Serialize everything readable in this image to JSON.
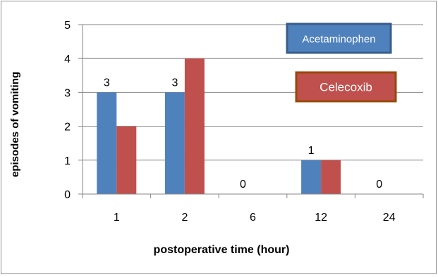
{
  "chart_data": {
    "type": "bar",
    "title": "",
    "xlabel": "postoperative time (hour)",
    "ylabel": "episodes of vomiting",
    "categories": [
      "1",
      "2",
      "6",
      "12",
      "24"
    ],
    "ylim": [
      0,
      5
    ],
    "yticks": [
      "0",
      "1",
      "2",
      "3",
      "4",
      "5"
    ],
    "grid": true,
    "legend_position": "top-right",
    "data_labels": [
      "3",
      "3",
      "0",
      "1",
      "0"
    ],
    "series": [
      {
        "name": "Acetaminophen",
        "values": [
          3,
          3,
          0,
          1,
          0
        ],
        "color": "#4f81bd",
        "border": "#385d8a"
      },
      {
        "name": "Celecoxib",
        "values": [
          2,
          4,
          0,
          1,
          0
        ],
        "color": "#c0504d",
        "border": "#984807"
      }
    ]
  }
}
